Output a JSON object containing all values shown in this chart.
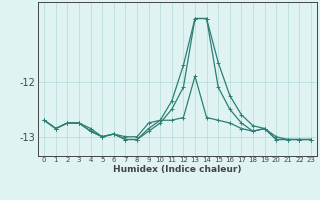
{
  "xlabel": "Humidex (Indice chaleur)",
  "x_values": [
    0,
    1,
    2,
    3,
    4,
    5,
    6,
    7,
    8,
    9,
    10,
    11,
    12,
    13,
    14,
    15,
    16,
    17,
    18,
    19,
    20,
    21,
    22,
    23
  ],
  "line1": [
    -12.7,
    -12.85,
    -12.75,
    -12.75,
    -12.85,
    -13.0,
    -12.95,
    -13.0,
    -13.0,
    -12.75,
    -12.7,
    -12.7,
    -12.65,
    -11.9,
    -12.65,
    -12.7,
    -12.75,
    -12.85,
    -12.9,
    -12.85,
    -13.0,
    -13.05,
    -13.05,
    -13.05
  ],
  "line2": [
    -12.7,
    -12.85,
    -12.75,
    -12.75,
    -12.9,
    -13.0,
    -12.95,
    -13.05,
    -13.05,
    -12.85,
    -12.7,
    -12.35,
    -11.7,
    -10.85,
    -10.85,
    -11.65,
    -12.25,
    -12.6,
    -12.8,
    -12.85,
    -13.05,
    -13.05,
    -13.05,
    -13.05
  ],
  "line3": [
    -12.7,
    -12.85,
    -12.75,
    -12.75,
    -12.9,
    -13.0,
    -12.95,
    -13.05,
    -13.05,
    -12.9,
    -12.75,
    -12.5,
    -12.1,
    -10.85,
    -10.85,
    -12.1,
    -12.5,
    -12.75,
    -12.9,
    -12.85,
    -13.05,
    -13.05,
    -13.05,
    -13.05
  ],
  "bg_color": "#dff3f3",
  "line_color": "#2d7f74",
  "grid_color": "#bcdede",
  "axis_color": "#444444",
  "ylim": [
    -13.35,
    -10.55
  ],
  "yticks": [
    -13,
    -12
  ],
  "xlim": [
    -0.5,
    23.5
  ]
}
